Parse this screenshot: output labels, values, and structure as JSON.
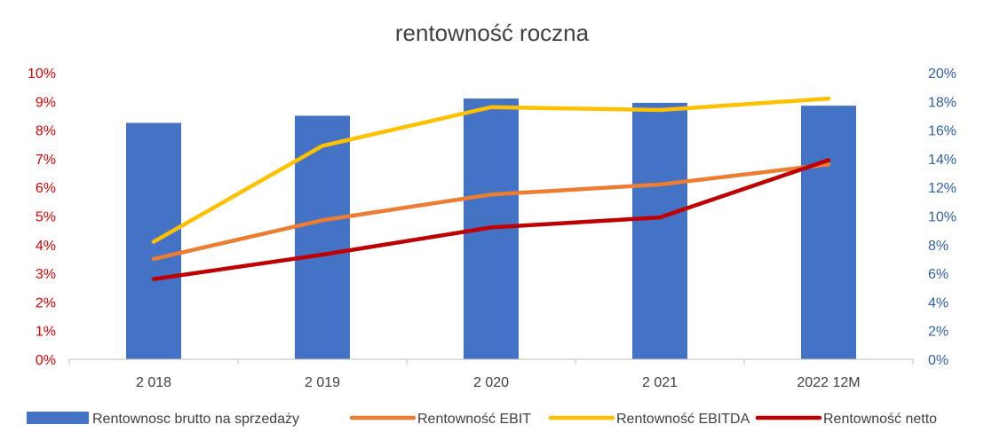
{
  "chart_data": {
    "type": "bar",
    "title": "rentowność roczna",
    "categories": [
      "2 018",
      "2 019",
      "2 020",
      "2 021",
      "2022 12M"
    ],
    "y_left": {
      "ylim": [
        0,
        10
      ],
      "ticks": [
        "0%",
        "1%",
        "2%",
        "3%",
        "4%",
        "5%",
        "6%",
        "7%",
        "8%",
        "9%",
        "10%"
      ],
      "color": "#e00000"
    },
    "y_right": {
      "ylim": [
        0,
        20
      ],
      "ticks": [
        "0%",
        "2%",
        "4%",
        "6%",
        "8%",
        "10%",
        "12%",
        "14%",
        "16%",
        "18%",
        "20%"
      ],
      "color": "#2e5fa8"
    },
    "series": [
      {
        "name": "Rentownosc brutto na sprzedaży",
        "type": "bar",
        "axis": "left",
        "color": "#4472c4",
        "values": [
          8.25,
          8.5,
          9.1,
          8.95,
          8.85
        ]
      },
      {
        "name": "Rentowność EBIT",
        "type": "line",
        "axis": "left",
        "color": "#ed7d31",
        "values": [
          3.5,
          4.85,
          5.75,
          6.1,
          6.8
        ]
      },
      {
        "name": "Rentowność EBITDA",
        "type": "line",
        "axis": "left",
        "color": "#ffc000",
        "values": [
          4.1,
          7.45,
          8.8,
          8.7,
          9.1
        ]
      },
      {
        "name": "Rentowność netto",
        "type": "line",
        "axis": "left",
        "color": "#c00000",
        "values": [
          2.8,
          3.65,
          4.6,
          4.95,
          6.95
        ]
      }
    ],
    "legend_position": "bottom",
    "grid": false
  }
}
